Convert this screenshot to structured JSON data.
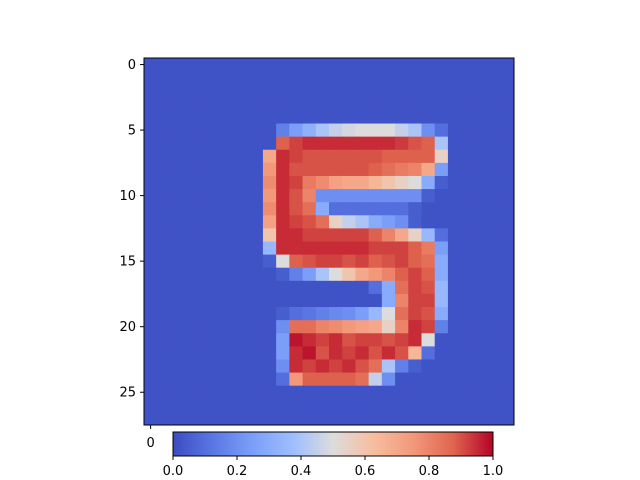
{
  "chart_data": {
    "type": "heatmap",
    "colormap": "coolwarm",
    "title": "",
    "xlabel": "",
    "ylabel": "",
    "rows": 28,
    "cols": 28,
    "vmin": 0.0,
    "vmax": 1.0,
    "y_ticks": [
      "0",
      "5",
      "10",
      "15",
      "20",
      "25"
    ],
    "x_ticks": [
      "0"
    ],
    "colorbar_ticks": [
      "0.0",
      "0.2",
      "0.4",
      "0.6",
      "0.8",
      "1.0"
    ],
    "values": [
      [
        0.02,
        0.02,
        0.02,
        0.02,
        0.02,
        0.02,
        0.02,
        0.02,
        0.02,
        0.02,
        0.02,
        0.02,
        0.02,
        0.02,
        0.02,
        0.02,
        0.02,
        0.02,
        0.02,
        0.02,
        0.02,
        0.02,
        0.02,
        0.02,
        0.02,
        0.02,
        0.02,
        0.02
      ],
      [
        0.02,
        0.02,
        0.02,
        0.02,
        0.02,
        0.02,
        0.02,
        0.02,
        0.02,
        0.02,
        0.02,
        0.02,
        0.02,
        0.02,
        0.02,
        0.02,
        0.02,
        0.02,
        0.02,
        0.02,
        0.02,
        0.02,
        0.02,
        0.02,
        0.02,
        0.02,
        0.02,
        0.02
      ],
      [
        0.02,
        0.02,
        0.02,
        0.02,
        0.02,
        0.02,
        0.02,
        0.02,
        0.02,
        0.02,
        0.02,
        0.02,
        0.02,
        0.02,
        0.02,
        0.02,
        0.02,
        0.02,
        0.02,
        0.02,
        0.02,
        0.02,
        0.02,
        0.02,
        0.02,
        0.02,
        0.02,
        0.02
      ],
      [
        0.02,
        0.02,
        0.02,
        0.02,
        0.02,
        0.02,
        0.02,
        0.02,
        0.02,
        0.02,
        0.02,
        0.02,
        0.02,
        0.02,
        0.02,
        0.02,
        0.02,
        0.02,
        0.02,
        0.02,
        0.02,
        0.02,
        0.02,
        0.02,
        0.02,
        0.02,
        0.02,
        0.02
      ],
      [
        0.02,
        0.02,
        0.02,
        0.02,
        0.02,
        0.02,
        0.02,
        0.02,
        0.02,
        0.02,
        0.02,
        0.02,
        0.02,
        0.02,
        0.02,
        0.02,
        0.02,
        0.02,
        0.02,
        0.02,
        0.02,
        0.02,
        0.02,
        0.02,
        0.02,
        0.02,
        0.02,
        0.02
      ],
      [
        0.02,
        0.02,
        0.02,
        0.02,
        0.02,
        0.02,
        0.02,
        0.02,
        0.02,
        0.02,
        0.15,
        0.25,
        0.32,
        0.4,
        0.45,
        0.48,
        0.5,
        0.5,
        0.5,
        0.45,
        0.4,
        0.2,
        0.1,
        0.02,
        0.02,
        0.02,
        0.02,
        0.02
      ],
      [
        0.02,
        0.02,
        0.02,
        0.02,
        0.02,
        0.02,
        0.02,
        0.02,
        0.02,
        0.02,
        0.88,
        0.92,
        0.95,
        0.95,
        0.95,
        0.95,
        0.95,
        0.95,
        0.95,
        0.93,
        0.9,
        0.88,
        0.4,
        0.02,
        0.02,
        0.02,
        0.02,
        0.02
      ],
      [
        0.02,
        0.02,
        0.02,
        0.02,
        0.02,
        0.02,
        0.02,
        0.02,
        0.02,
        0.7,
        0.95,
        0.92,
        0.9,
        0.9,
        0.9,
        0.9,
        0.9,
        0.9,
        0.88,
        0.88,
        0.88,
        0.88,
        0.55,
        0.02,
        0.02,
        0.02,
        0.02,
        0.02
      ],
      [
        0.02,
        0.02,
        0.02,
        0.02,
        0.02,
        0.02,
        0.02,
        0.02,
        0.02,
        0.75,
        0.95,
        0.9,
        0.9,
        0.9,
        0.9,
        0.9,
        0.9,
        0.88,
        0.85,
        0.82,
        0.8,
        0.7,
        0.25,
        0.02,
        0.02,
        0.02,
        0.02,
        0.02
      ],
      [
        0.02,
        0.02,
        0.02,
        0.02,
        0.02,
        0.02,
        0.02,
        0.02,
        0.02,
        0.78,
        0.95,
        0.92,
        0.82,
        0.78,
        0.72,
        0.7,
        0.7,
        0.65,
        0.6,
        0.55,
        0.5,
        0.3,
        0.05,
        0.02,
        0.02,
        0.02,
        0.02,
        0.02
      ],
      [
        0.02,
        0.02,
        0.02,
        0.02,
        0.02,
        0.02,
        0.02,
        0.02,
        0.02,
        0.75,
        0.95,
        0.9,
        0.8,
        0.2,
        0.2,
        0.2,
        0.2,
        0.2,
        0.2,
        0.2,
        0.2,
        0.05,
        0.02,
        0.02,
        0.02,
        0.02,
        0.02,
        0.02
      ],
      [
        0.02,
        0.02,
        0.02,
        0.02,
        0.02,
        0.02,
        0.02,
        0.02,
        0.02,
        0.78,
        0.95,
        0.9,
        0.85,
        0.3,
        0.1,
        0.1,
        0.1,
        0.1,
        0.1,
        0.1,
        0.05,
        0.02,
        0.02,
        0.02,
        0.02,
        0.02,
        0.02,
        0.02
      ],
      [
        0.02,
        0.02,
        0.02,
        0.02,
        0.02,
        0.02,
        0.02,
        0.02,
        0.02,
        0.72,
        0.95,
        0.92,
        0.9,
        0.85,
        0.55,
        0.45,
        0.4,
        0.3,
        0.25,
        0.2,
        0.05,
        0.02,
        0.02,
        0.02,
        0.02,
        0.02,
        0.02,
        0.02
      ],
      [
        0.02,
        0.02,
        0.02,
        0.02,
        0.02,
        0.02,
        0.02,
        0.02,
        0.02,
        0.6,
        0.95,
        0.95,
        0.92,
        0.92,
        0.92,
        0.92,
        0.92,
        0.88,
        0.8,
        0.7,
        0.55,
        0.35,
        0.1,
        0.02,
        0.02,
        0.02,
        0.02,
        0.02
      ],
      [
        0.02,
        0.02,
        0.02,
        0.02,
        0.02,
        0.02,
        0.02,
        0.02,
        0.02,
        0.35,
        0.95,
        0.95,
        0.95,
        0.95,
        0.95,
        0.95,
        0.95,
        0.92,
        0.92,
        0.92,
        0.88,
        0.82,
        0.25,
        0.02,
        0.02,
        0.02,
        0.02,
        0.02
      ],
      [
        0.02,
        0.02,
        0.02,
        0.02,
        0.02,
        0.02,
        0.02,
        0.02,
        0.02,
        0.05,
        0.5,
        0.88,
        0.9,
        0.92,
        0.92,
        0.9,
        0.92,
        0.88,
        0.9,
        0.92,
        0.88,
        0.85,
        0.3,
        0.02,
        0.02,
        0.02,
        0.02,
        0.02
      ],
      [
        0.02,
        0.02,
        0.02,
        0.02,
        0.02,
        0.02,
        0.02,
        0.02,
        0.02,
        0.02,
        0.05,
        0.15,
        0.25,
        0.4,
        0.5,
        0.6,
        0.7,
        0.75,
        0.8,
        0.88,
        0.92,
        0.88,
        0.3,
        0.02,
        0.02,
        0.02,
        0.02,
        0.02
      ],
      [
        0.02,
        0.02,
        0.02,
        0.02,
        0.02,
        0.02,
        0.02,
        0.02,
        0.02,
        0.02,
        0.02,
        0.02,
        0.02,
        0.02,
        0.02,
        0.02,
        0.02,
        0.1,
        0.3,
        0.85,
        0.92,
        0.9,
        0.35,
        0.02,
        0.02,
        0.02,
        0.02,
        0.02
      ],
      [
        0.02,
        0.02,
        0.02,
        0.02,
        0.02,
        0.02,
        0.02,
        0.02,
        0.02,
        0.02,
        0.02,
        0.02,
        0.02,
        0.02,
        0.02,
        0.02,
        0.02,
        0.02,
        0.3,
        0.8,
        0.92,
        0.92,
        0.35,
        0.02,
        0.02,
        0.02,
        0.02,
        0.02
      ],
      [
        0.02,
        0.02,
        0.02,
        0.02,
        0.02,
        0.02,
        0.02,
        0.02,
        0.02,
        0.02,
        0.05,
        0.1,
        0.12,
        0.15,
        0.18,
        0.2,
        0.25,
        0.35,
        0.5,
        0.85,
        0.92,
        0.9,
        0.3,
        0.02,
        0.02,
        0.02,
        0.02,
        0.02
      ],
      [
        0.02,
        0.02,
        0.02,
        0.02,
        0.02,
        0.02,
        0.02,
        0.02,
        0.02,
        0.02,
        0.2,
        0.85,
        0.85,
        0.8,
        0.78,
        0.75,
        0.72,
        0.7,
        0.55,
        0.8,
        0.95,
        0.92,
        0.15,
        0.02,
        0.02,
        0.02,
        0.02,
        0.02
      ],
      [
        0.02,
        0.02,
        0.02,
        0.02,
        0.02,
        0.02,
        0.02,
        0.02,
        0.02,
        0.02,
        0.25,
        0.98,
        0.95,
        0.92,
        0.95,
        0.9,
        0.92,
        0.92,
        0.9,
        0.92,
        0.95,
        0.5,
        0.02,
        0.02,
        0.02,
        0.02,
        0.02,
        0.02
      ],
      [
        0.02,
        0.02,
        0.02,
        0.02,
        0.02,
        0.02,
        0.02,
        0.02,
        0.02,
        0.02,
        0.25,
        0.95,
        0.98,
        0.9,
        0.95,
        0.92,
        0.95,
        0.9,
        0.95,
        0.9,
        0.65,
        0.1,
        0.02,
        0.02,
        0.02,
        0.02,
        0.02,
        0.02
      ],
      [
        0.02,
        0.02,
        0.02,
        0.02,
        0.02,
        0.02,
        0.02,
        0.02,
        0.02,
        0.02,
        0.2,
        0.95,
        0.92,
        0.95,
        0.92,
        0.95,
        0.9,
        0.85,
        0.4,
        0.15,
        0.05,
        0.02,
        0.02,
        0.02,
        0.02,
        0.02,
        0.02,
        0.02
      ],
      [
        0.02,
        0.02,
        0.02,
        0.02,
        0.02,
        0.02,
        0.02,
        0.02,
        0.02,
        0.02,
        0.1,
        0.75,
        0.88,
        0.88,
        0.88,
        0.88,
        0.85,
        0.45,
        0.2,
        0.02,
        0.02,
        0.02,
        0.02,
        0.02,
        0.02,
        0.02,
        0.02,
        0.02
      ],
      [
        0.02,
        0.02,
        0.02,
        0.02,
        0.02,
        0.02,
        0.02,
        0.02,
        0.02,
        0.02,
        0.02,
        0.02,
        0.02,
        0.02,
        0.02,
        0.02,
        0.02,
        0.02,
        0.02,
        0.02,
        0.02,
        0.02,
        0.02,
        0.02,
        0.02,
        0.02,
        0.02,
        0.02
      ],
      [
        0.02,
        0.02,
        0.02,
        0.02,
        0.02,
        0.02,
        0.02,
        0.02,
        0.02,
        0.02,
        0.02,
        0.02,
        0.02,
        0.02,
        0.02,
        0.02,
        0.02,
        0.02,
        0.02,
        0.02,
        0.02,
        0.02,
        0.02,
        0.02,
        0.02,
        0.02,
        0.02,
        0.02
      ],
      [
        0.02,
        0.02,
        0.02,
        0.02,
        0.02,
        0.02,
        0.02,
        0.02,
        0.02,
        0.02,
        0.02,
        0.02,
        0.02,
        0.02,
        0.02,
        0.02,
        0.02,
        0.02,
        0.02,
        0.02,
        0.02,
        0.02,
        0.02,
        0.02,
        0.02,
        0.02,
        0.02,
        0.02
      ]
    ]
  }
}
